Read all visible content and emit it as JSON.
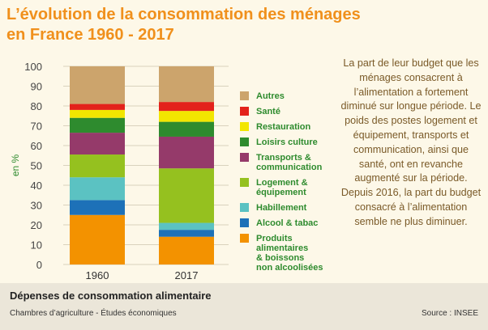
{
  "header": {
    "title_line1": "L’évolution de la consommation des ménages",
    "title_line2": "en France 1960 - 2017"
  },
  "side_text": "La part de leur budget que les ménages consacrent à l’alimentation a fortement diminué sur longue période. Le poids des postes logement et équipement, transports et communication, ainsi que santé, ont en revanche augmenté sur la période. Depuis 2016, la part du budget consacré à l’alimentation semble ne plus diminuer.",
  "footer": {
    "heading": "Dépenses de consommation alimentaire",
    "credit": "Chambres d’agriculture - Études économiques",
    "source": "Source : INSEE"
  },
  "chart_data": {
    "type": "bar",
    "stacked": true,
    "categories": [
      "1960",
      "2017"
    ],
    "ylabel": "en %",
    "xlabel": "",
    "ylim": [
      0,
      100
    ],
    "yticks": [
      0,
      10,
      20,
      30,
      40,
      50,
      60,
      70,
      80,
      90,
      100
    ],
    "grid": true,
    "legend_position": "right",
    "series": [
      {
        "name": "Produits alimentaires & boissons non alcoolisées",
        "label_lines": [
          "Produits",
          "alimentaires",
          "& boissons",
          "non alcoolisées"
        ],
        "color": "#f39200",
        "values": [
          25,
          14
        ]
      },
      {
        "name": "Alcool & tabac",
        "label_lines": [
          "Alcool & tabac"
        ],
        "color": "#1d71b8",
        "values": [
          7.5,
          3.5
        ]
      },
      {
        "name": "Habillement",
        "label_lines": [
          "Habillement"
        ],
        "color": "#5bc2c2",
        "values": [
          11.5,
          3.5
        ]
      },
      {
        "name": "Logement & équipement",
        "label_lines": [
          "Logement &",
          "équipement"
        ],
        "color": "#95c11f",
        "values": [
          11.5,
          27.5
        ]
      },
      {
        "name": "Transports & communication",
        "label_lines": [
          "Transports &",
          "communication"
        ],
        "color": "#953a6a",
        "values": [
          11,
          16
        ]
      },
      {
        "name": "Loisirs culture",
        "label_lines": [
          "Loisirs culture"
        ],
        "color": "#2e8b2e",
        "values": [
          7.5,
          7.5
        ]
      },
      {
        "name": "Restauration",
        "label_lines": [
          "Restauration"
        ],
        "color": "#f2e600",
        "values": [
          4,
          5.5
        ]
      },
      {
        "name": "Santé",
        "label_lines": [
          "Santé"
        ],
        "color": "#e3221b",
        "values": [
          3,
          4.5
        ]
      },
      {
        "name": "Autres",
        "label_lines": [
          "Autres"
        ],
        "color": "#cca46c",
        "values": [
          19,
          18
        ]
      }
    ]
  }
}
